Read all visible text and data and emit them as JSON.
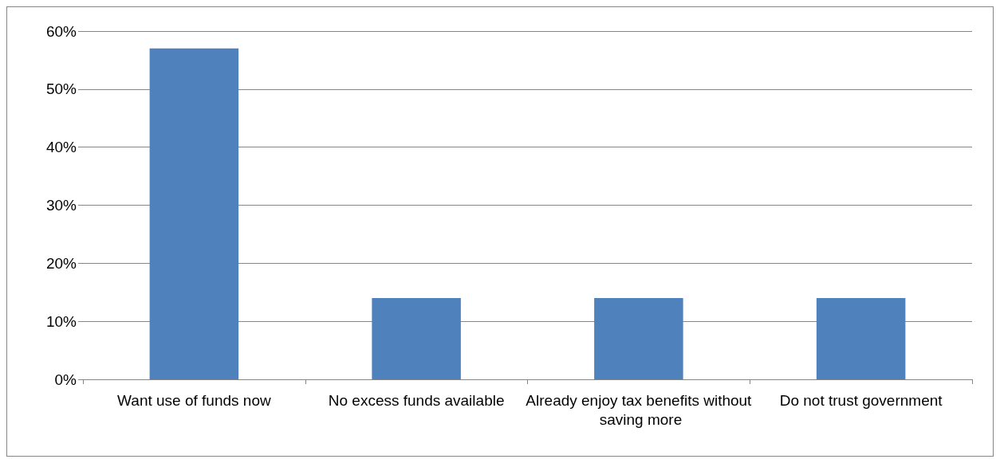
{
  "chart_data": {
    "type": "bar",
    "categories": [
      "Want use of funds now",
      "No excess funds available",
      "Already enjoy tax benefits without saving more",
      "Do not trust government"
    ],
    "values": [
      57,
      14,
      14,
      14
    ],
    "color": "#4f81bd",
    "ylim": [
      0,
      60
    ],
    "yticks": [
      {
        "value": 0,
        "label": "0%"
      },
      {
        "value": 10,
        "label": "10%"
      },
      {
        "value": 20,
        "label": "20%"
      },
      {
        "value": 30,
        "label": "30%"
      },
      {
        "value": 40,
        "label": "40%"
      },
      {
        "value": 50,
        "label": "50%"
      },
      {
        "value": 60,
        "label": "60%"
      }
    ],
    "grid": "y"
  }
}
